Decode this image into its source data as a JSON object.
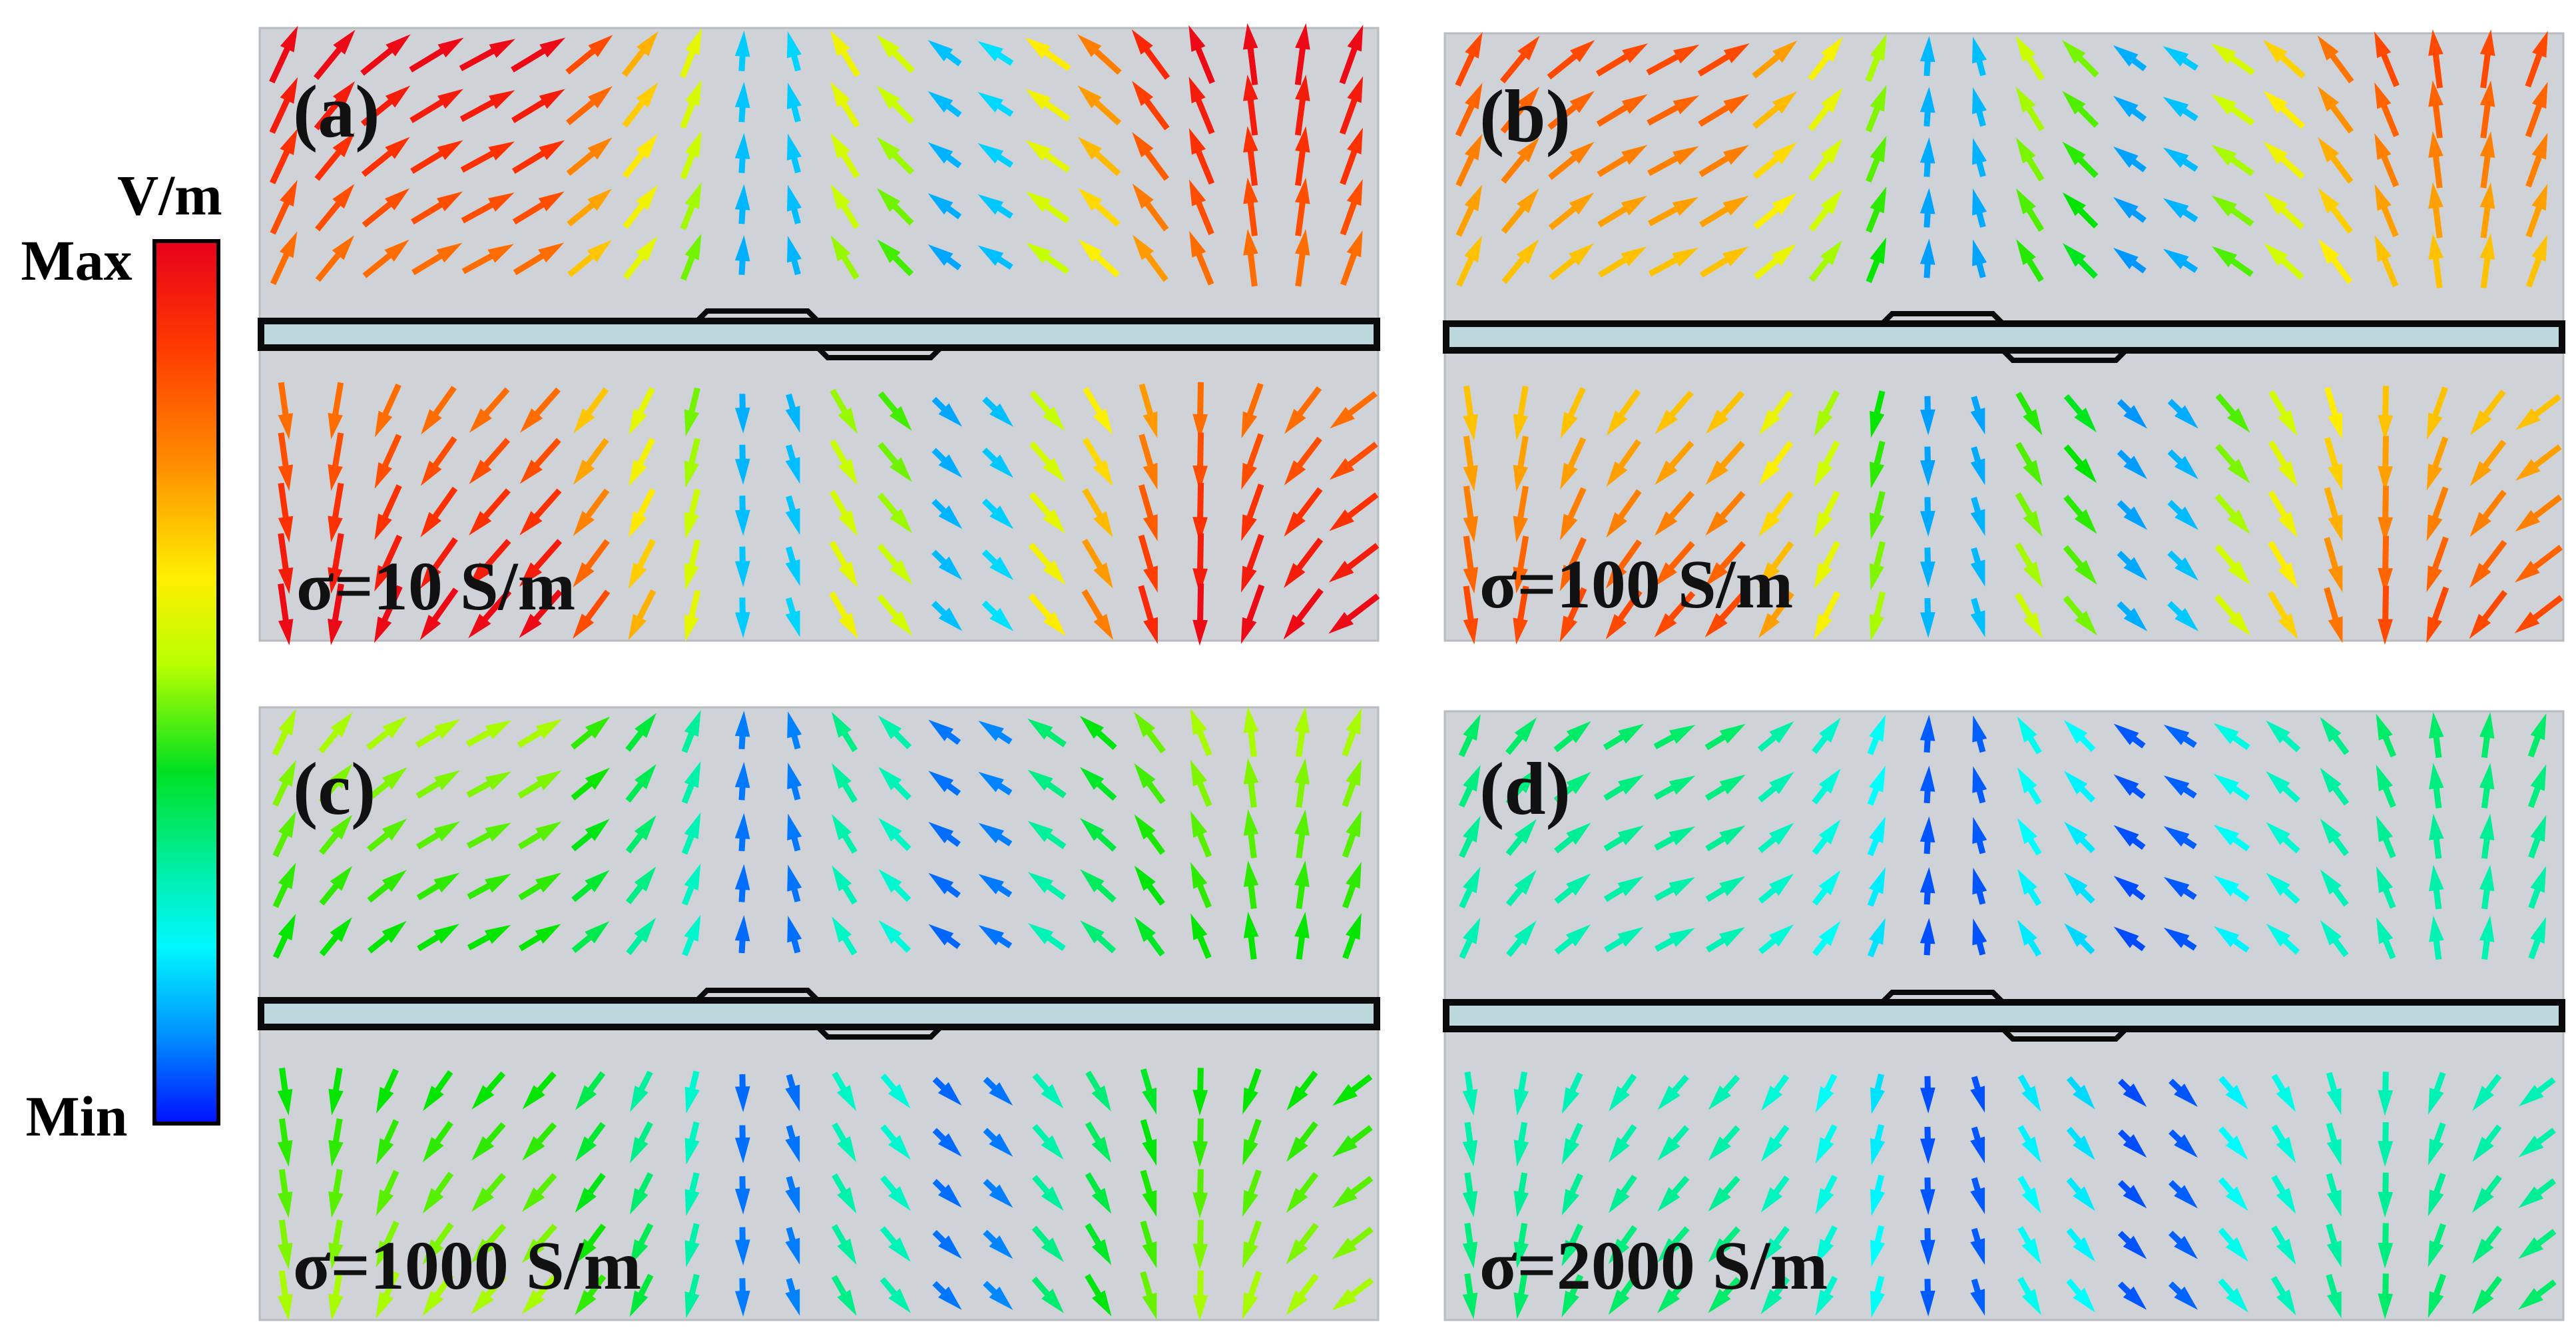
{
  "colorbar": {
    "unit": "V/m",
    "max_label": "Max",
    "min_label": "Min",
    "gradient": [
      "#e6001a",
      "#ff3300",
      "#ff8800",
      "#ffee00",
      "#c8ff00",
      "#00e400",
      "#00f0a0",
      "#00ffff",
      "#0090ff",
      "#0010ff"
    ]
  },
  "panels": [
    {
      "label": "(a)",
      "sigma": "σ=10 S/m",
      "level": 1.0
    },
    {
      "label": "(b)",
      "sigma": "σ=100 S/m",
      "level": 0.88
    },
    {
      "label": "(c)",
      "sigma": "σ=1000 S/m",
      "level": 0.55
    },
    {
      "label": "(d)",
      "sigma": "σ=2000 S/m",
      "level": 0.38
    }
  ],
  "colors": {
    "panel_bg": "#cfd2d6",
    "strip_fill": "#bcd8dc",
    "strip_stroke": "#0a0a0a"
  }
}
